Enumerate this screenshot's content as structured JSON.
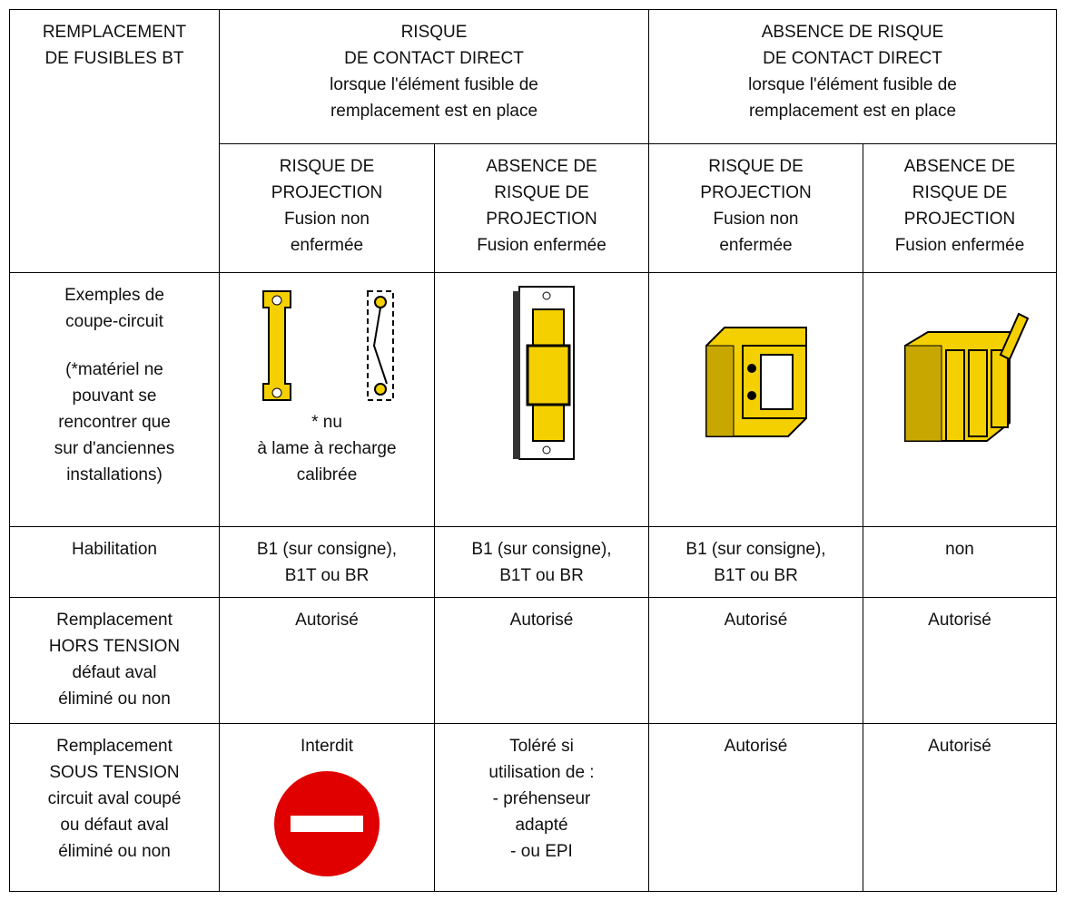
{
  "header": {
    "corner": [
      "REMPLACEMENT",
      "DE FUSIBLES BT"
    ],
    "groups": [
      [
        "RISQUE",
        "DE CONTACT DIRECT",
        "lorsque l'élément fusible de",
        "remplacement est en place"
      ],
      [
        "ABSENCE DE RISQUE",
        "DE CONTACT DIRECT",
        "lorsque l'élément fusible de",
        "remplacement est en place"
      ]
    ],
    "subheaders": [
      [
        "RISQUE DE",
        "PROJECTION",
        "Fusion non",
        "enfermée"
      ],
      [
        "ABSENCE DE",
        "RISQUE DE",
        "PROJECTION",
        "Fusion enfermée"
      ],
      [
        "RISQUE DE",
        "PROJECTION",
        "Fusion non",
        "enfermée"
      ],
      [
        "ABSENCE DE",
        "RISQUE DE",
        "PROJECTION",
        "Fusion enfermée"
      ]
    ]
  },
  "examples": {
    "label": [
      "Exemples de",
      "coupe-circuit"
    ],
    "note": [
      "(*matériel ne",
      "pouvant se",
      "rencontrer que",
      "sur d'anciennes",
      "installations)"
    ],
    "captions": [
      "* nu",
      "à lame  à recharge",
      "calibrée"
    ]
  },
  "rows": [
    {
      "label": [
        "Habilitation"
      ],
      "cells": [
        [
          "B1 (sur consigne),",
          "B1T ou BR"
        ],
        [
          "B1 (sur consigne),",
          "B1T ou BR"
        ],
        [
          "B1 (sur consigne),",
          "B1T ou BR"
        ],
        [
          "non"
        ]
      ]
    },
    {
      "label": [
        "Remplacement",
        "HORS TENSION",
        "défaut aval",
        "éliminé ou non"
      ],
      "cells": [
        [
          "Autorisé"
        ],
        [
          "Autorisé"
        ],
        [
          "Autorisé"
        ],
        [
          "Autorisé"
        ]
      ]
    },
    {
      "label": [
        "Remplacement",
        "SOUS TENSION",
        "circuit aval coupé",
        "ou défaut aval",
        "éliminé ou non"
      ],
      "cells": [
        [
          "Interdit"
        ],
        [
          "Toléré si",
          "utilisation de :",
          "- préhenseur",
          "adapté",
          "- ou EPI"
        ],
        [
          "Autorisé"
        ],
        [
          "Autorisé"
        ]
      ]
    }
  ]
}
